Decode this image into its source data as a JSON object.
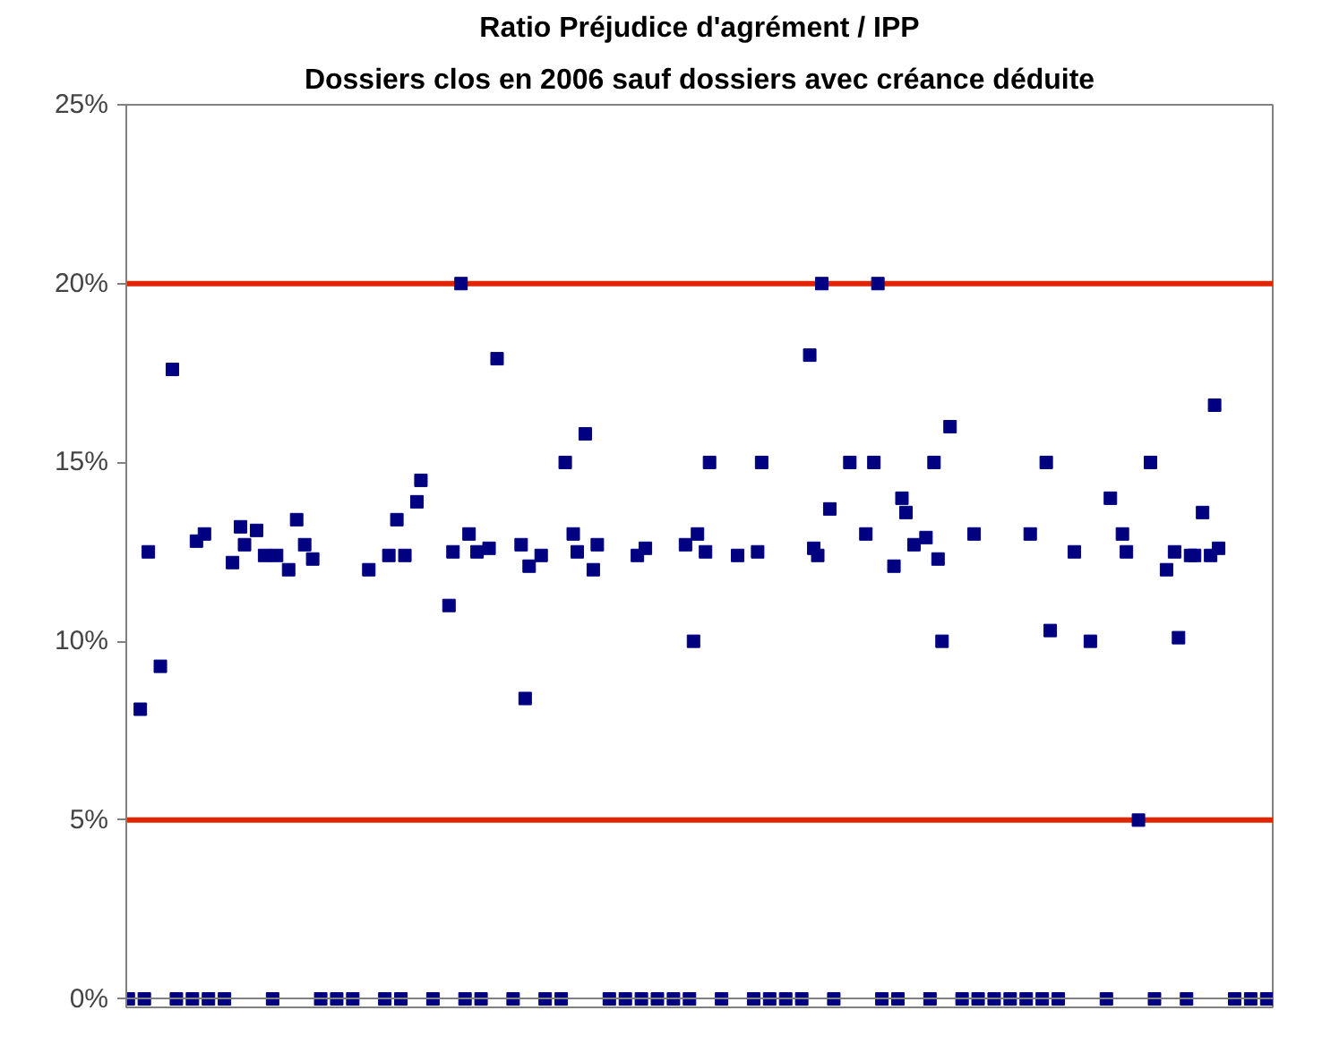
{
  "chart_data": {
    "type": "scatter",
    "title": "Ratio Préjudice d'agrément / IPP",
    "subtitle": "Dossiers clos en 2006 sauf dossiers avec créance déduite",
    "categories": [
      null,
      null,
      null,
      null,
      null,
      null,
      null,
      null,
      null,
      null,
      null,
      null,
      null,
      null,
      null,
      null,
      null,
      null,
      null,
      null,
      null,
      null,
      null,
      null,
      null,
      null,
      null,
      null,
      null,
      null,
      null,
      null,
      null,
      null,
      null,
      null,
      null,
      null,
      null,
      null,
      null,
      null,
      null,
      null,
      null,
      null,
      null,
      null,
      null,
      null,
      null,
      null,
      null,
      null,
      null,
      null,
      null,
      null,
      null,
      null,
      null,
      null,
      null,
      null,
      null,
      null,
      null,
      null,
      null,
      null,
      null,
      null,
      null,
      null,
      null,
      null,
      null,
      null,
      null,
      null,
      null,
      null,
      null,
      null,
      null,
      null,
      null,
      null,
      null,
      null,
      null,
      null,
      null,
      null,
      null,
      null,
      null,
      null,
      null,
      null,
      null,
      null,
      null,
      null,
      null,
      null,
      null,
      null,
      null,
      null,
      null,
      null,
      null,
      null,
      null,
      null,
      null,
      null,
      null,
      null,
      null,
      null,
      null,
      null,
      null,
      null,
      null,
      null,
      null,
      null,
      null,
      null,
      null,
      null,
      null,
      null,
      null,
      null,
      null,
      null,
      null,
      null,
      null,
      null,
      null,
      null,
      null,
      null,
      null,
      null,
      null,
      null,
      null,
      null,
      null,
      null,
      null,
      null,
      null,
      null,
      null,
      null,
      null,
      null,
      null,
      null,
      null,
      null,
      null,
      null,
      null,
      null,
      null,
      null,
      null,
      null,
      null,
      null,
      null,
      null,
      null,
      null,
      null,
      null,
      null,
      null,
      null,
      null,
      null,
      null,
      null,
      null,
      null,
      null,
      null,
      null,
      null,
      null,
      null,
      null,
      null,
      null,
      null,
      null,
      null,
      null,
      null,
      null,
      null,
      null,
      null,
      null,
      null,
      null,
      null,
      null,
      null,
      null,
      null,
      null,
      null,
      null,
      null,
      null,
      null,
      null,
      null,
      null,
      null,
      null,
      null,
      null,
      null,
      null,
      null,
      null,
      null,
      null,
      null,
      null,
      null,
      null,
      null,
      null,
      null,
      null,
      null,
      null,
      null,
      null,
      null,
      null,
      null,
      null,
      null,
      null,
      null,
      null,
      null,
      null,
      null,
      null,
      null,
      null,
      null,
      null,
      null,
      null,
      null,
      null,
      null,
      null,
      null,
      null,
      null,
      null,
      null,
      null,
      null,
      null,
      null,
      null,
      null,
      null,
      null,
      null
    ],
    "series": [
      {
        "color": "#000080",
        "values": [
          0,
          null,
          null,
          8.1,
          0,
          12.5,
          null,
          null,
          9.3,
          null,
          null,
          17.6,
          0,
          null,
          null,
          null,
          0,
          12.8,
          null,
          13.0,
          0,
          null,
          null,
          null,
          0,
          null,
          12.2,
          null,
          13.2,
          12.7,
          null,
          null,
          13.1,
          null,
          12.4,
          null,
          0,
          12.4,
          null,
          null,
          12.0,
          null,
          13.4,
          null,
          12.7,
          null,
          12.3,
          null,
          0,
          null,
          null,
          null,
          0,
          null,
          null,
          null,
          0,
          null,
          null,
          null,
          12.0,
          null,
          null,
          null,
          0,
          12.4,
          null,
          13.4,
          0,
          12.4,
          null,
          null,
          13.9,
          14.5,
          null,
          null,
          0,
          null,
          null,
          null,
          11.0,
          12.5,
          null,
          20.0,
          0,
          13.0,
          null,
          12.5,
          0,
          null,
          12.6,
          null,
          17.9,
          null,
          null,
          null,
          0,
          null,
          12.7,
          8.4,
          12.1,
          null,
          null,
          12.4,
          0,
          null,
          null,
          null,
          0,
          15.0,
          null,
          13.0,
          12.5,
          null,
          15.8,
          null,
          12.0,
          12.7,
          null,
          null,
          0,
          null,
          null,
          null,
          0,
          null,
          null,
          12.4,
          0,
          12.6,
          null,
          null,
          0,
          null,
          null,
          null,
          0,
          null,
          null,
          12.7,
          0,
          10.0,
          13.0,
          null,
          12.5,
          15.0,
          null,
          null,
          0,
          null,
          null,
          null,
          12.4,
          null,
          null,
          null,
          0,
          12.5,
          15.0,
          null,
          0,
          null,
          null,
          null,
          0,
          null,
          null,
          null,
          0,
          null,
          18.0,
          12.6,
          12.4,
          20.0,
          null,
          13.7,
          0,
          null,
          null,
          null,
          15.0,
          null,
          null,
          null,
          13.0,
          null,
          15.0,
          20.0,
          0,
          null,
          null,
          12.1,
          0,
          14.0,
          13.6,
          null,
          12.7,
          null,
          null,
          12.9,
          0,
          15.0,
          12.3,
          10.0,
          null,
          16.0,
          null,
          null,
          0,
          null,
          null,
          13.0,
          0,
          null,
          null,
          null,
          0,
          null,
          null,
          null,
          0,
          null,
          null,
          null,
          0,
          13.0,
          null,
          null,
          0,
          15.0,
          10.3,
          null,
          0,
          null,
          null,
          null,
          12.5,
          null,
          null,
          null,
          10.0,
          null,
          null,
          null,
          0,
          14.0,
          null,
          null,
          13.0,
          12.5,
          null,
          null,
          5.0,
          null,
          null,
          15.0,
          0,
          null,
          null,
          12.0,
          null,
          12.5,
          10.1,
          null,
          0,
          12.4,
          12.4,
          null,
          13.6,
          null,
          12.4,
          16.6,
          12.6,
          null,
          null,
          null,
          0,
          null,
          null,
          null,
          0,
          null,
          null,
          null,
          0,
          null
        ]
      }
    ],
    "marker": "square",
    "ylim": [
      0,
      25
    ],
    "yticks": [
      {
        "value": 0,
        "label": "0%"
      },
      {
        "value": 5,
        "label": "5%"
      },
      {
        "value": 10,
        "label": "10%"
      },
      {
        "value": 15,
        "label": "15%"
      },
      {
        "value": 20,
        "label": "20%"
      },
      {
        "value": 25,
        "label": "25%"
      }
    ],
    "ref_lines": [
      {
        "axis": "y",
        "value": 20,
        "color": "#e32400"
      },
      {
        "axis": "y",
        "value": 5,
        "color": "#e32400"
      }
    ],
    "tick_labels": "y",
    "grid": false
  }
}
